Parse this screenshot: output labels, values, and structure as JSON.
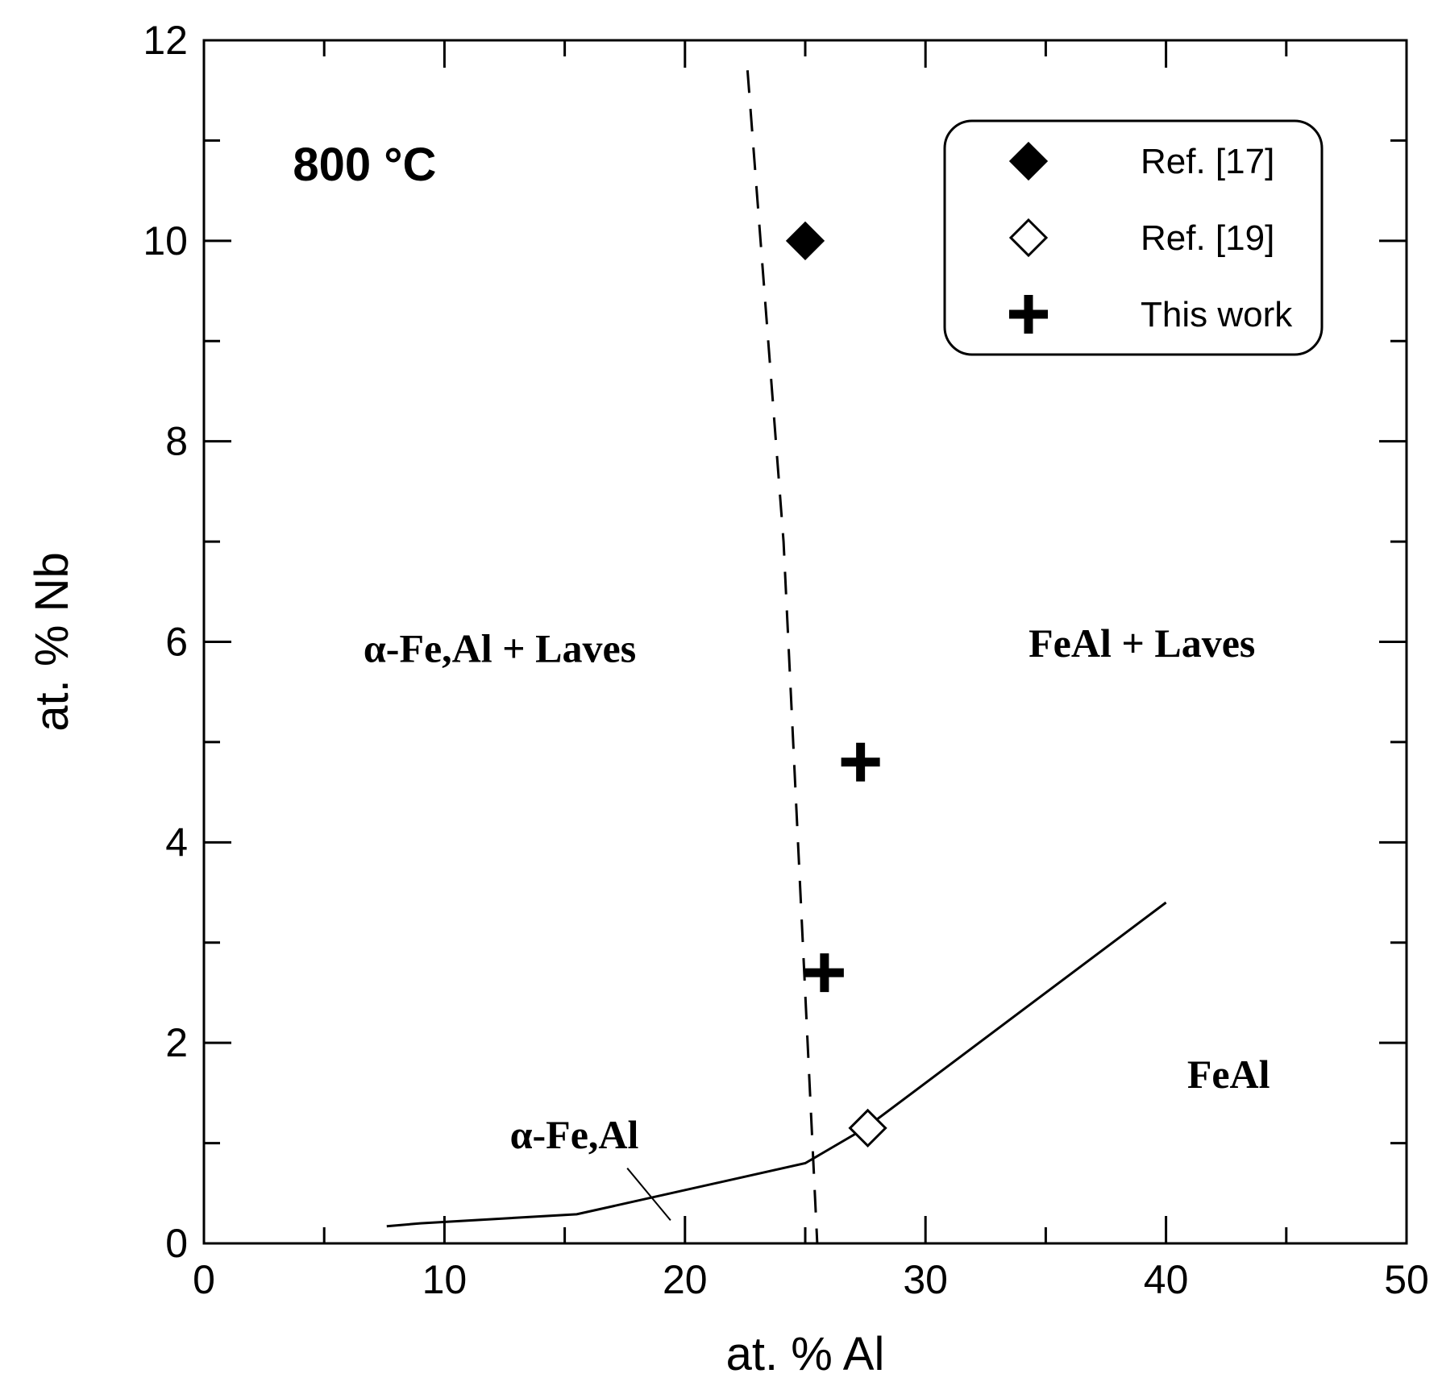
{
  "chart_data": {
    "type": "scatter",
    "title": "",
    "xlabel": "at. % Al",
    "ylabel": "at. % Nb",
    "xlim": [
      0,
      50
    ],
    "ylim": [
      0,
      12
    ],
    "x_ticks": [
      0,
      10,
      20,
      30,
      40,
      50
    ],
    "y_ticks": [
      0,
      2,
      4,
      6,
      8,
      10,
      12
    ],
    "x_minor_step": 5,
    "y_minor_step": 1,
    "grid": false,
    "legend_position": "top-right",
    "temperature_label": "800 °C",
    "region_labels": [
      {
        "name": "alpha-laves",
        "text": "α-Fe,Al + Laves",
        "x": 12.3,
        "y": 5.8
      },
      {
        "name": "feal-laves",
        "text": "FeAl + Laves",
        "x": 39.0,
        "y": 5.85
      },
      {
        "name": "feal",
        "text": "FeAl",
        "x": 42.6,
        "y": 1.55
      },
      {
        "name": "alpha-feal",
        "text": "α-Fe,Al",
        "x": 15.4,
        "y": 0.95
      }
    ],
    "leader_line": [
      [
        17.6,
        0.75
      ],
      [
        19.4,
        0.23
      ]
    ],
    "phase_boundaries": [
      {
        "name": "solubility-line",
        "style": "solid",
        "points": [
          [
            7.6,
            0.17
          ],
          [
            9.0,
            0.2
          ],
          [
            15.5,
            0.29
          ],
          [
            25.0,
            0.8
          ],
          [
            27.5,
            1.15
          ],
          [
            40.0,
            3.4
          ]
        ]
      },
      {
        "name": "a2-b2-boundary",
        "style": "dashed",
        "points": [
          [
            22.6,
            11.7
          ],
          [
            24.1,
            7.0
          ],
          [
            25.5,
            0.0
          ]
        ]
      }
    ],
    "series": [
      {
        "name": "Ref. [17]",
        "marker": "diamond-filled",
        "points": [
          [
            25.0,
            10.0
          ]
        ]
      },
      {
        "name": "Ref. [19]",
        "marker": "diamond-open",
        "points": [
          [
            27.6,
            1.15
          ]
        ]
      },
      {
        "name": "This work",
        "marker": "plus",
        "points": [
          [
            27.3,
            4.8
          ],
          [
            25.8,
            2.7
          ]
        ]
      }
    ]
  }
}
